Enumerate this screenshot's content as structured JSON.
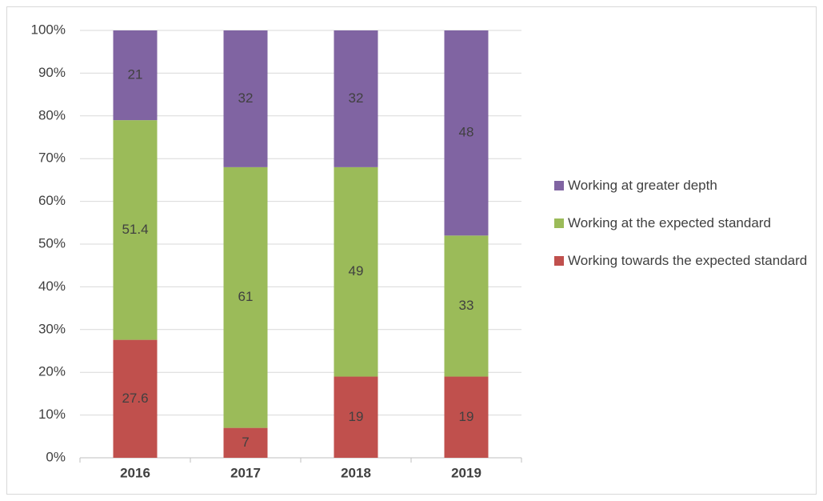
{
  "chart_data": {
    "type": "stacked_bar",
    "categories": [
      "2016",
      "2017",
      "2018",
      "2019"
    ],
    "series": [
      {
        "name": "Working towards the expected standard",
        "color": "#c0504d",
        "values": [
          27.6,
          7,
          19,
          19
        ]
      },
      {
        "name": "Working at the expected standard",
        "color": "#9bbb59",
        "values": [
          51.4,
          61,
          49,
          33
        ]
      },
      {
        "name": "Working at greater depth",
        "color": "#8064a2",
        "values": [
          21,
          32,
          32,
          48
        ]
      }
    ],
    "ylim": [
      0,
      100
    ],
    "yticks": [
      {
        "value": 0,
        "label": "0%"
      },
      {
        "value": 10,
        "label": "10%"
      },
      {
        "value": 20,
        "label": "20%"
      },
      {
        "value": 30,
        "label": "30%"
      },
      {
        "value": 40,
        "label": "40%"
      },
      {
        "value": 50,
        "label": "50%"
      },
      {
        "value": 60,
        "label": "60%"
      },
      {
        "value": 70,
        "label": "70%"
      },
      {
        "value": 80,
        "label": "80%"
      },
      {
        "value": 90,
        "label": "90%"
      },
      {
        "value": 100,
        "label": "100%"
      }
    ],
    "grid": true,
    "legend": "right"
  }
}
